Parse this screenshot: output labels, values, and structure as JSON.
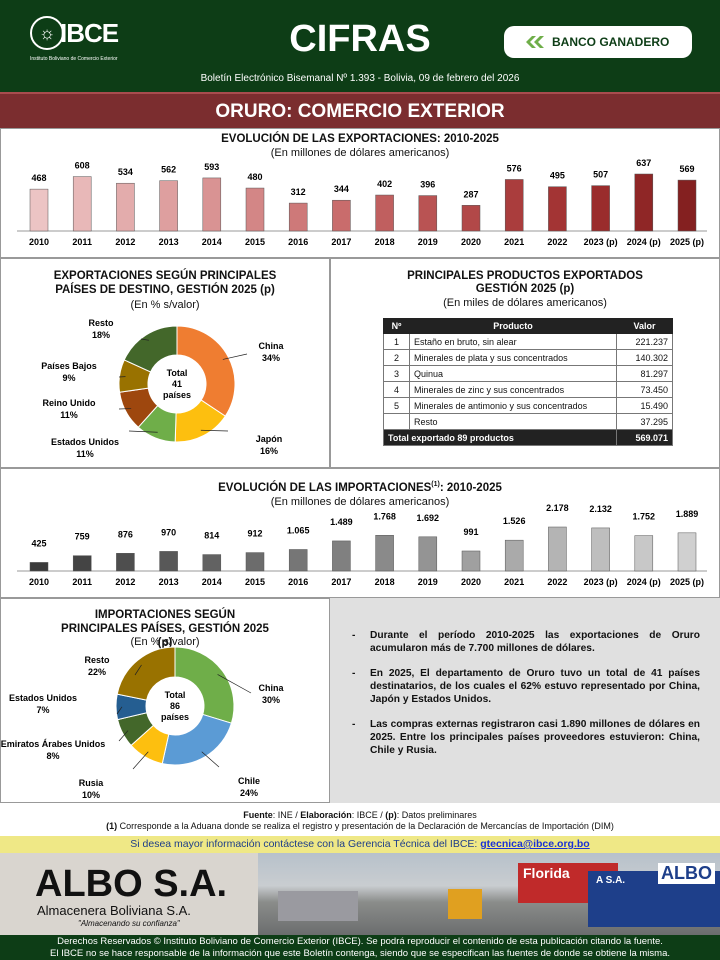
{
  "header": {
    "logo": "IBCE",
    "logo_sub": "Instituto Boliviano de Comercio Exterior",
    "title": "CIFRAS",
    "sponsor": "BANCO GANADERO",
    "bulletin": "Boletín Electrónico Bisemanal Nº 1.393 - Bolivia, 09 de febrero del 2026"
  },
  "section_title": "ORURO: COMERCIO EXTERIOR",
  "colors": {
    "header_green": "#0d3d16",
    "section_maroon": "#7b2d2f",
    "contact_yellow": "#efe886"
  },
  "chart_data": [
    {
      "type": "bar",
      "title": "EVOLUCIÓN DE LAS EXPORTACIONES: 2010-2025",
      "subtitle": "(En millones de dólares americanos)",
      "categories": [
        "2010",
        "2011",
        "2012",
        "2013",
        "2014",
        "2015",
        "2016",
        "2017",
        "2018",
        "2019",
        "2020",
        "2021",
        "2022",
        "2023 (p)",
        "2024 (p)",
        "2025 (p)"
      ],
      "values": [
        468,
        608,
        534,
        562,
        593,
        480,
        312,
        344,
        402,
        396,
        287,
        576,
        495,
        507,
        637,
        569
      ],
      "labels": [
        "468",
        "608",
        "534",
        "562",
        "593",
        "480",
        "312",
        "344",
        "402",
        "396",
        "287",
        "576",
        "495",
        "507",
        "637",
        "569"
      ],
      "colors": [
        "#ecc4c4",
        "#e8b8b8",
        "#e3acac",
        "#de9f9f",
        "#d99393",
        "#d38686",
        "#ce7979",
        "#c96c6c",
        "#c05f5f",
        "#b95353",
        "#b24848",
        "#aa3d3d",
        "#a33434",
        "#9a2c2c",
        "#8f2626",
        "#842020"
      ]
    },
    {
      "type": "pie",
      "title": "EXPORTACIONES SEGÚN PRINCIPALES PAÍSES DE DESTINO, GESTIÓN 2025 (p)",
      "subtitle": "(En % s/valor)",
      "center": [
        "Total",
        "41",
        "países"
      ],
      "slices": [
        {
          "name": "China",
          "value": 34,
          "label": "34%",
          "color": "#ef7d31"
        },
        {
          "name": "Japón",
          "value": 16,
          "label": "16%",
          "color": "#fdbf0f"
        },
        {
          "name": "Estados Unidos",
          "value": 11,
          "label": "11%",
          "color": "#6fae49"
        },
        {
          "name": "Reino Unido",
          "value": 11,
          "label": "11%",
          "color": "#9e470e"
        },
        {
          "name": "Países Bajos",
          "value": 9,
          "label": "9%",
          "color": "#997200"
        },
        {
          "name": "Resto",
          "value": 18,
          "label": "18%",
          "color": "#43672a"
        }
      ]
    },
    {
      "type": "table",
      "title": "PRINCIPALES PRODUCTOS EXPORTADOS GESTIÓN 2025 (p)",
      "subtitle": "(En miles de dólares americanos)",
      "columns": [
        "Nº",
        "Producto",
        "Valor"
      ],
      "rows": [
        [
          "1",
          "Estaño en bruto, sin alear",
          "221.237"
        ],
        [
          "2",
          "Minerales de plata y sus concentrados",
          "140.302"
        ],
        [
          "3",
          "Quinua",
          "81.297"
        ],
        [
          "4",
          "Minerales de zinc y sus concentrados",
          "73.450"
        ],
        [
          "5",
          "Minerales de antimonio y sus concentrados",
          "15.490"
        ],
        [
          "",
          "Resto",
          "37.295"
        ]
      ],
      "total": [
        "Total exportado 89 productos",
        "569.071"
      ]
    },
    {
      "type": "bar",
      "title": "EVOLUCIÓN DE LAS IMPORTACIONES",
      "title_sup": "(1)",
      "title_end": ": 2010-2025",
      "subtitle": "(En millones de dólares americanos)",
      "categories": [
        "2010",
        "2011",
        "2012",
        "2013",
        "2014",
        "2015",
        "2016",
        "2017",
        "2018",
        "2019",
        "2020",
        "2021",
        "2022",
        "2023 (p)",
        "2024 (p)",
        "2025 (p)"
      ],
      "values": [
        425,
        759,
        876,
        970,
        814,
        912,
        1065,
        1489,
        1768,
        1692,
        991,
        1526,
        2178,
        2132,
        1752,
        1889
      ],
      "labels": [
        "425",
        "759",
        "876",
        "970",
        "814",
        "912",
        "1.065",
        "1.489",
        "1.768",
        "1.692",
        "991",
        "1.526",
        "2.178",
        "2.132",
        "1.752",
        "1.889"
      ],
      "colors": [
        "#3a3a3a",
        "#444444",
        "#4e4e4e",
        "#585858",
        "#626262",
        "#6c6c6c",
        "#767676",
        "#808080",
        "#8a8a8a",
        "#949494",
        "#a0a0a0",
        "#aaaaaa",
        "#b4b4b4",
        "#bebebe",
        "#c8c8c8",
        "#d0d0d0"
      ]
    },
    {
      "type": "pie",
      "title": "IMPORTACIONES SEGÚN PRINCIPALES PAÍSES, GESTIÓN 2025 (p)",
      "subtitle": "(En % s/valor)",
      "center": [
        "Total",
        "86",
        "países"
      ],
      "slices": [
        {
          "name": "China",
          "value": 30,
          "label": "30%",
          "color": "#6fae49"
        },
        {
          "name": "Chile",
          "value": 24,
          "label": "24%",
          "color": "#5b9bd5"
        },
        {
          "name": "Rusia",
          "value": 10,
          "label": "10%",
          "color": "#fdbf0f"
        },
        {
          "name": "Emiratos Árabes Unidos",
          "value": 8,
          "label": "8%",
          "color": "#43672a"
        },
        {
          "name": "Estados Unidos",
          "value": 7,
          "label": "7%",
          "color": "#255e91"
        },
        {
          "name": "Resto",
          "value": 22,
          "label": "22%",
          "color": "#997200"
        }
      ]
    }
  ],
  "notes": [
    "Durante el período 2010-2025 las exportaciones de Oruro acumularon más de 7.700 millones de dólares.",
    "En 2025, El departamento de Oruro tuvo un total de 41 países destinatarios, de los cuales el 62% estuvo representado por China, Japón y Estados Unidos.",
    "Las compras externas registraron casi 1.890 millones de dólares en 2025. Entre los principales países proveedores estuvieron: China, Chile y Rusia."
  ],
  "source": {
    "l1a": "Fuente",
    "l1b": ": INE / ",
    "l1c": "Elaboración",
    "l1d": ": IBCE / ",
    "l1e": "(p)",
    "l1f": ": Datos preliminares",
    "l2a": "(1)",
    "l2b": " Corresponde a la Aduana donde se realiza el registro y presentación de la Declaración de Mercancías de Importación (DIM)"
  },
  "contact": {
    "text": "Si desea mayor información contáctese con la Gerencia Técnica del IBCE: ",
    "email": "gtecnica@ibce.org.bo"
  },
  "ad": {
    "brand": "ALBO S.A.",
    "name": "Almacenera Boliviana S.A.",
    "slogan": "\"Almacenando su confianza\"",
    "sign1": "Florida",
    "sign2": "ALBO",
    "sign3": "A S.A."
  },
  "footer": {
    "l1": "Derechos Reservados © Instituto Boliviano de Comercio Exterior (IBCE). Se podrá reproducir el contenido de esta publicación citando la fuente.",
    "l2": "El IBCE no se hace responsable de la información que este Boletín contenga, siendo que se especifican las fuentes de donde se obtiene la misma."
  }
}
